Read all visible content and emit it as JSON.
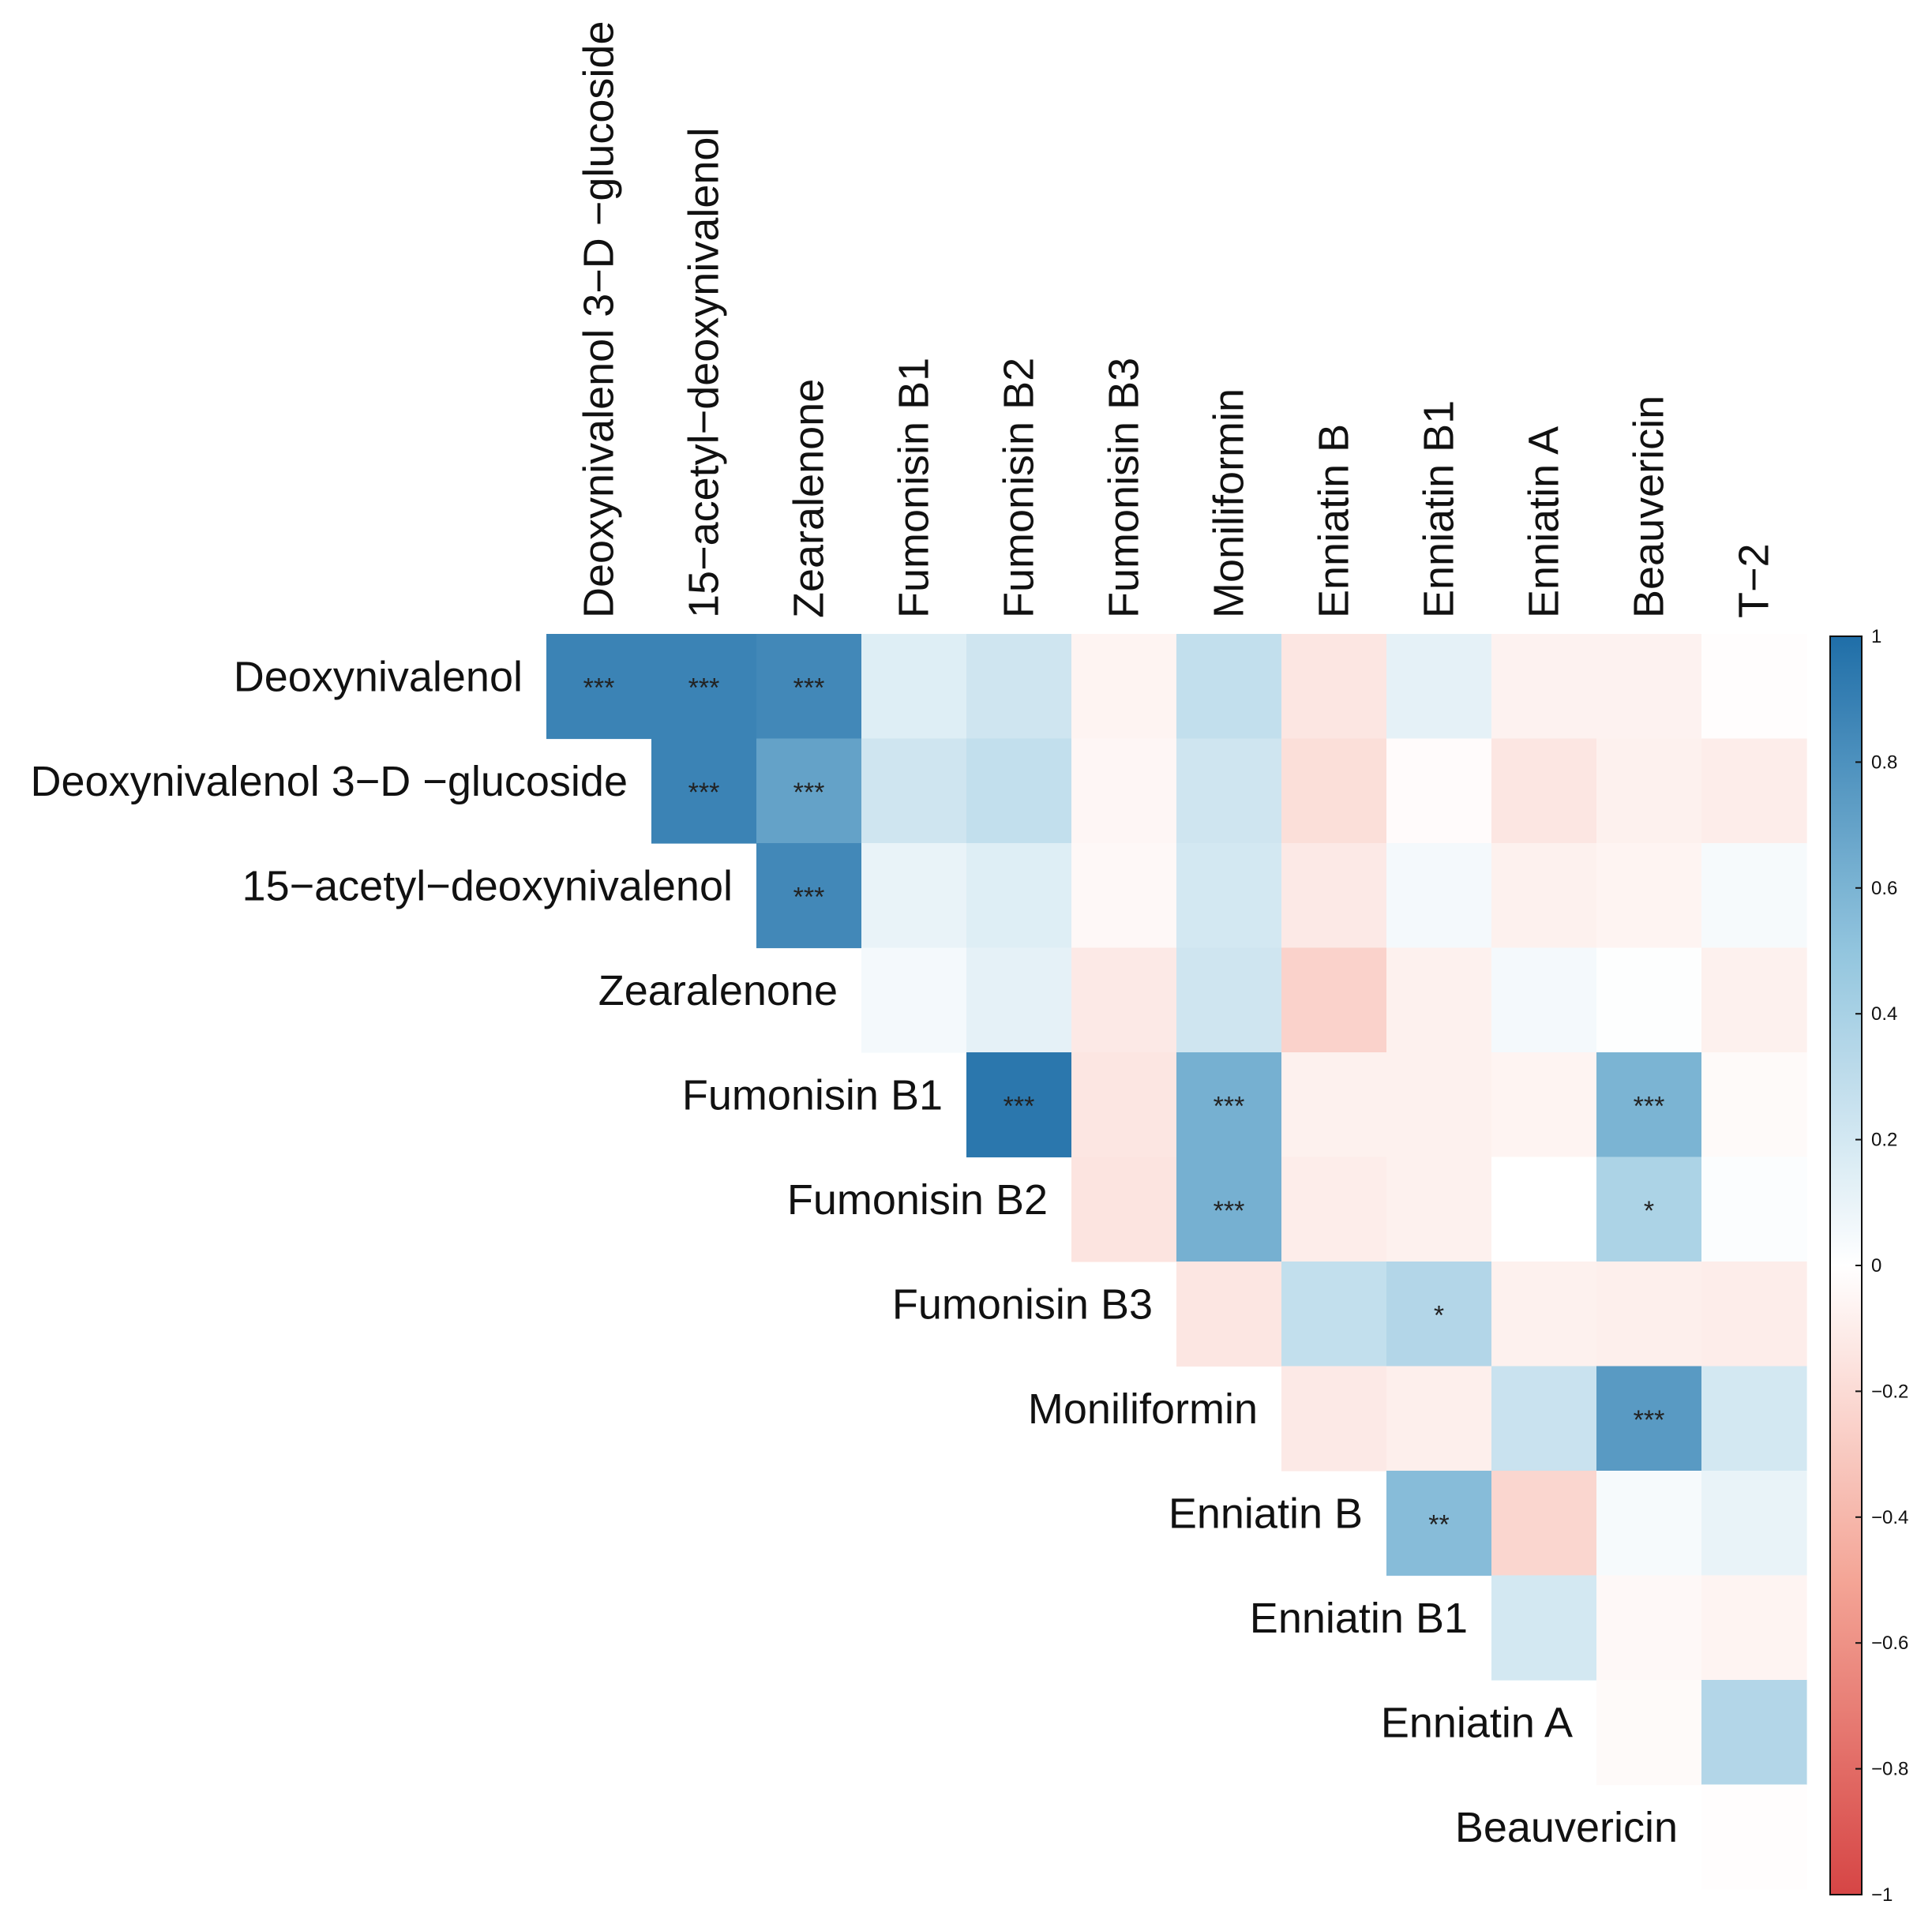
{
  "chart_data": {
    "type": "heatmap",
    "title": "",
    "row_labels": [
      "Deoxynivalenol",
      "Deoxynivalenol 3−D −glucoside",
      "15−acetyl−deoxynivalenol",
      "Zearalenone",
      "Fumonisin B1",
      "Fumonisin B2",
      "Fumonisin B3",
      "Moniliformin",
      "Enniatin B",
      "Enniatin B1",
      "Enniatin A",
      "Beauvericin"
    ],
    "col_labels": [
      "Deoxynivalenol 3−D −glucoside",
      "15−acetyl−deoxynivalenol",
      "Zearalenone",
      "Fumonisin B1",
      "Fumonisin B2",
      "Fumonisin B3",
      "Moniliformin",
      "Enniatin B",
      "Enniatin B1",
      "Enniatin A",
      "Beauvericin",
      "T−2"
    ],
    "values": [
      [
        0.88,
        0.88,
        0.85,
        0.15,
        0.22,
        -0.06,
        0.28,
        -0.14,
        0.12,
        -0.07,
        -0.07,
        -0.01
      ],
      [
        null,
        0.88,
        0.7,
        0.22,
        0.28,
        -0.05,
        0.22,
        -0.18,
        -0.02,
        -0.14,
        -0.08,
        -0.1
      ],
      [
        null,
        null,
        0.85,
        0.1,
        0.15,
        -0.04,
        0.2,
        -0.12,
        0.05,
        -0.08,
        -0.06,
        0.04
      ],
      [
        null,
        null,
        null,
        0.05,
        0.12,
        -0.12,
        0.22,
        -0.25,
        -0.08,
        0.05,
        0.01,
        -0.08
      ],
      [
        null,
        null,
        null,
        null,
        0.95,
        -0.14,
        0.62,
        -0.08,
        -0.08,
        -0.06,
        0.6,
        -0.03
      ],
      [
        null,
        null,
        null,
        null,
        null,
        -0.15,
        0.62,
        -0.1,
        -0.08,
        0.0,
        0.38,
        0.02
      ],
      [
        null,
        null,
        null,
        null,
        null,
        null,
        -0.14,
        0.28,
        0.35,
        -0.08,
        -0.09,
        -0.1
      ],
      [
        null,
        null,
        null,
        null,
        null,
        null,
        null,
        -0.12,
        -0.09,
        0.25,
        0.75,
        0.2
      ],
      [
        null,
        null,
        null,
        null,
        null,
        null,
        null,
        null,
        0.55,
        -0.23,
        0.04,
        0.1
      ],
      [
        null,
        null,
        null,
        null,
        null,
        null,
        null,
        null,
        null,
        0.2,
        -0.04,
        -0.06
      ],
      [
        null,
        null,
        null,
        null,
        null,
        null,
        null,
        null,
        null,
        null,
        -0.03,
        0.35
      ],
      [
        null,
        null,
        null,
        null,
        null,
        null,
        null,
        null,
        null,
        null,
        null,
        -0.01
      ]
    ],
    "significance": [
      [
        "***",
        "***",
        "***",
        "",
        "",
        "",
        "",
        "",
        "",
        "",
        "",
        ""
      ],
      [
        "",
        "***",
        "***",
        "",
        "",
        "",
        "",
        "",
        "",
        "",
        "",
        ""
      ],
      [
        "",
        "",
        "***",
        "",
        "",
        "",
        "",
        "",
        "",
        "",
        "",
        ""
      ],
      [
        "",
        "",
        "",
        "",
        "",
        "",
        "",
        "",
        "",
        "",
        "",
        ""
      ],
      [
        "",
        "",
        "",
        "",
        "***",
        "",
        "***",
        "",
        "",
        "",
        "***",
        ""
      ],
      [
        "",
        "",
        "",
        "",
        "",
        "",
        "***",
        "",
        "",
        "",
        "*",
        ""
      ],
      [
        "",
        "",
        "",
        "",
        "",
        "",
        "",
        "",
        "*",
        "",
        "",
        ""
      ],
      [
        "",
        "",
        "",
        "",
        "",
        "",
        "",
        "",
        "",
        "",
        "***",
        ""
      ],
      [
        "",
        "",
        "",
        "",
        "",
        "",
        "",
        "",
        "**",
        "",
        "",
        ""
      ],
      [
        "",
        "",
        "",
        "",
        "",
        "",
        "",
        "",
        "",
        "",
        "",
        ""
      ],
      [
        "",
        "",
        "",
        "",
        "",
        "",
        "",
        "",
        "",
        "",
        "",
        ""
      ],
      [
        "",
        "",
        "",
        "",
        "",
        "",
        "",
        "",
        "",
        "",
        "",
        ""
      ]
    ],
    "colorbar": {
      "range": [
        -1,
        1
      ],
      "ticks": [
        1,
        0.8,
        0.6,
        0.4,
        0.2,
        0,
        -0.2,
        -0.4,
        -0.6,
        -0.8,
        -1
      ],
      "tick_labels": [
        "1",
        "0.8",
        "0.6",
        "0.4",
        "0.2",
        "0",
        "−0.2",
        "−0.4",
        "−0.6",
        "−0.8",
        "−1"
      ],
      "colors": {
        "positive": "#1f6ea8",
        "zero": "#ffffff",
        "negative": "#d64545"
      }
    }
  }
}
